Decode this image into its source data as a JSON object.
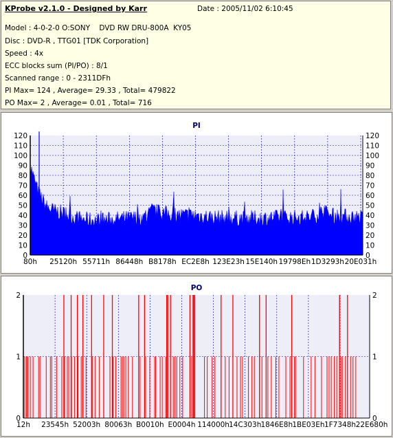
{
  "header": {
    "title": "KProbe v2.1.0 - Designed by Karr",
    "date": "Date : 2005/11/02 6:10:45",
    "model": "Model : 4-0-2-0 O:SONY    DVD RW DRU-800A  KY05",
    "disc": "Disc : DVD-R , TTG01 [TDK Corporation]",
    "speed": "Speed : 4x",
    "ecc": "ECC blocks sum (PI/PO) : 8/1",
    "range": "Scanned range : 0 - 2311DFh",
    "pi_stats": "PI Max= 124 , Average= 29.33 , Total= 479822",
    "po_stats": "PO Max= 2 , Average= 0.01 , Total= 716"
  },
  "chart_data": [
    {
      "type": "area",
      "title": "PI",
      "ylim": [
        0,
        120
      ],
      "yticks": [
        0,
        10,
        20,
        30,
        40,
        50,
        60,
        70,
        80,
        90,
        100,
        110,
        120
      ],
      "xticks": [
        "80h",
        "25120h",
        "55711h",
        "86448h",
        "B8178h",
        "EC2E8h",
        "123E23h",
        "15E140h",
        "19798Eh",
        "1D3293h",
        "20E031h"
      ],
      "grid": true,
      "colors": {
        "fill": "#0000ff",
        "grid": "#0000a0",
        "bg": "#eeeef8"
      },
      "max": 124,
      "average": 29.33,
      "profile": {
        "x": [
          0,
          0.01,
          0.025,
          0.05,
          0.075,
          0.1,
          0.13,
          0.16,
          0.2,
          0.25,
          0.3,
          0.35,
          0.365,
          0.4,
          0.45,
          0.5,
          0.55,
          0.6,
          0.65,
          0.7,
          0.75,
          0.8,
          0.85,
          0.88,
          0.9,
          0.95,
          1.0
        ],
        "y": [
          90,
          78,
          62,
          48,
          44,
          42,
          38,
          36,
          35,
          36,
          37,
          38,
          45,
          42,
          40,
          40,
          38,
          37,
          37,
          37,
          38,
          38,
          38,
          44,
          40,
          39,
          38
        ]
      }
    },
    {
      "type": "bar",
      "title": "PO",
      "ylim": [
        0,
        2
      ],
      "yticks": [
        0,
        1,
        2
      ],
      "xticks": [
        "12h",
        "23545h",
        "52003h",
        "80063h",
        "B0010h",
        "E0004h",
        "114000h",
        "14C303h",
        "1846E8h",
        "1BE03Eh",
        "1F7348h",
        "22E680h"
      ],
      "grid": true,
      "colors": {
        "bar": "#ff0000",
        "grid": "#0000a0",
        "bg": "#eeeef8"
      },
      "max": 2,
      "average": 0.01,
      "bars_value_2_at_fraction": [
        0.117,
        0.138,
        0.156,
        0.172,
        0.197,
        0.232,
        0.257,
        0.333,
        0.35,
        0.414,
        0.417,
        0.425,
        0.481,
        0.49,
        0.492,
        0.495,
        0.571,
        0.605,
        0.682,
        0.701,
        0.775,
        0.913,
        0.936
      ],
      "bars_value_1_at_fraction": [
        0.004,
        0.009,
        0.013,
        0.02,
        0.028,
        0.044,
        0.048,
        0.066,
        0.078,
        0.082,
        0.096,
        0.111,
        0.119,
        0.127,
        0.131,
        0.139,
        0.148,
        0.158,
        0.167,
        0.181,
        0.199,
        0.207,
        0.219,
        0.25,
        0.259,
        0.267,
        0.282,
        0.286,
        0.29,
        0.296,
        0.303,
        0.315,
        0.337,
        0.353,
        0.365,
        0.379,
        0.382,
        0.395,
        0.401,
        0.411,
        0.433,
        0.438,
        0.443,
        0.452,
        0.46,
        0.486,
        0.523,
        0.531,
        0.545,
        0.553,
        0.583,
        0.594,
        0.617,
        0.627,
        0.633,
        0.65,
        0.66,
        0.667,
        0.682,
        0.689,
        0.706,
        0.716,
        0.729,
        0.738,
        0.758,
        0.77,
        0.783,
        0.786,
        0.809,
        0.831,
        0.842,
        0.861,
        0.877,
        0.883,
        0.889,
        0.898,
        0.905,
        0.917,
        0.921,
        0.93,
        0.945,
        0.952,
        0.96
      ]
    }
  ]
}
